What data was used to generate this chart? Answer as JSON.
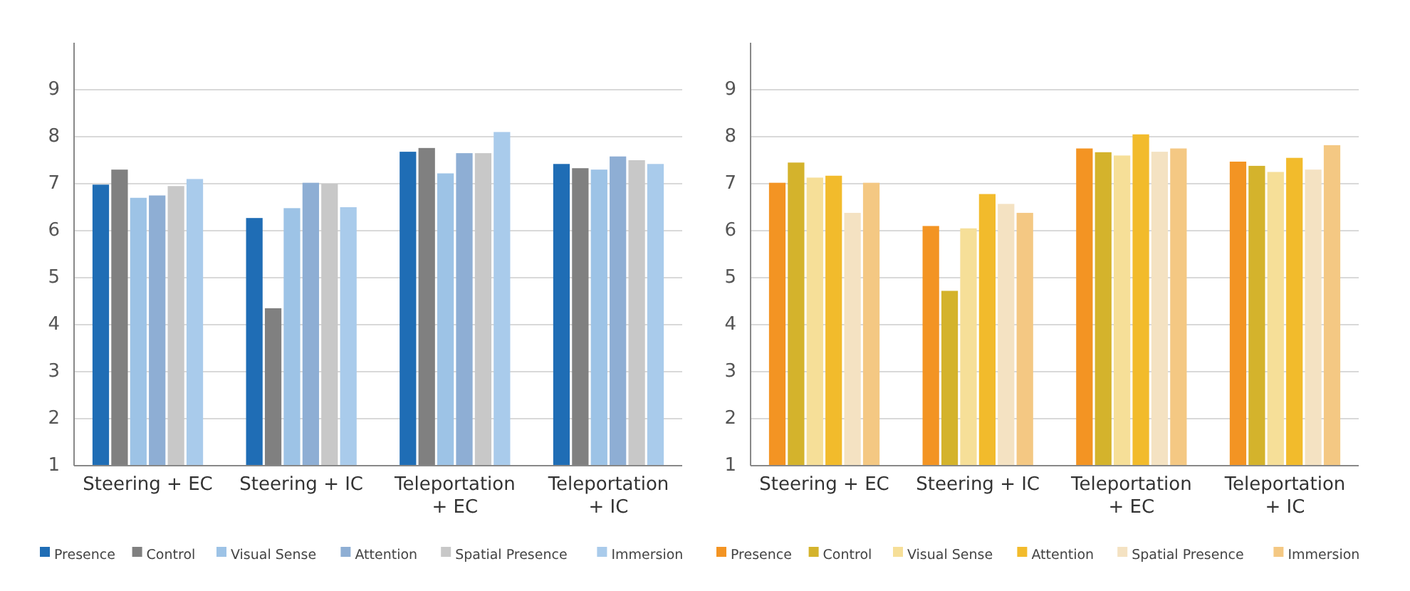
{
  "chart_data": [
    {
      "type": "bar",
      "categories": [
        "Steering + EC",
        "Steering + IC",
        "Teleportation + EC",
        "Teleportation + IC"
      ],
      "ylim": [
        1,
        10
      ],
      "yticks": [
        1,
        2,
        3,
        4,
        5,
        6,
        7,
        8,
        9
      ],
      "grid": "y",
      "legend": "bottom",
      "series": [
        {
          "name": "Presence",
          "color": "#1f6db5",
          "values": [
            6.98,
            6.27,
            7.68,
            7.42
          ]
        },
        {
          "name": "Control",
          "color": "#808080",
          "values": [
            7.3,
            4.35,
            7.76,
            7.33
          ]
        },
        {
          "name": "Visual Sense",
          "color": "#9dc3e6",
          "values": [
            6.7,
            6.48,
            7.22,
            7.3
          ]
        },
        {
          "name": "Attention",
          "color": "#8eaed4",
          "values": [
            6.75,
            7.02,
            7.65,
            7.58
          ]
        },
        {
          "name": "Spatial Presence",
          "color": "#c8c8c8",
          "values": [
            6.95,
            7.0,
            7.65,
            7.5
          ]
        },
        {
          "name": "Immersion",
          "color": "#a9cbeb",
          "values": [
            7.1,
            6.5,
            8.1,
            7.42
          ]
        }
      ]
    },
    {
      "type": "bar",
      "categories": [
        "Steering + EC",
        "Steering + IC",
        "Teleportation + EC",
        "Teleportation + IC"
      ],
      "ylim": [
        1,
        10
      ],
      "yticks": [
        1,
        2,
        3,
        4,
        5,
        6,
        7,
        8,
        9
      ],
      "grid": "y",
      "legend": "bottom",
      "series": [
        {
          "name": "Presence",
          "color": "#f39423",
          "values": [
            7.02,
            6.1,
            7.75,
            7.47
          ]
        },
        {
          "name": "Control",
          "color": "#d4b32c",
          "values": [
            7.45,
            4.72,
            7.67,
            7.38
          ]
        },
        {
          "name": "Visual Sense",
          "color": "#f6df98",
          "values": [
            7.13,
            6.05,
            7.6,
            7.25
          ]
        },
        {
          "name": "Attention",
          "color": "#f2bb2c",
          "values": [
            7.17,
            6.78,
            8.05,
            7.55
          ]
        },
        {
          "name": "Spatial Presence",
          "color": "#f4e2c2",
          "values": [
            6.38,
            6.57,
            7.68,
            7.3
          ]
        },
        {
          "name": "Immersion",
          "color": "#f4c883",
          "values": [
            7.02,
            6.38,
            7.75,
            7.82
          ]
        }
      ]
    }
  ]
}
